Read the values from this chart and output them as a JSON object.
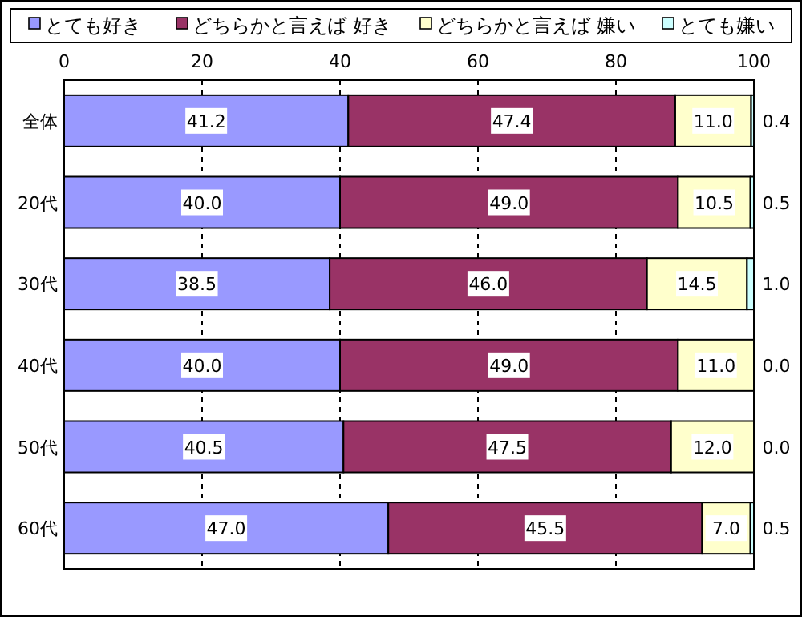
{
  "chart_data": {
    "type": "bar",
    "orientation": "horizontal",
    "stacked": true,
    "categories": [
      "全体",
      "20代",
      "30代",
      "40代",
      "50代",
      "60代"
    ],
    "series": [
      {
        "name": "とても好き",
        "color": "#9999ff",
        "values": [
          41.2,
          40.0,
          38.5,
          40.0,
          40.5,
          47.0
        ],
        "value_labels": [
          "41.2",
          "40.0",
          "38.5",
          "40.0",
          "40.5",
          "47.0"
        ]
      },
      {
        "name": "どちらかと言えば 好き",
        "color": "#993366",
        "values": [
          47.4,
          49.0,
          46.0,
          49.0,
          47.5,
          45.5
        ],
        "value_labels": [
          "47.4",
          "49.0",
          "46.0",
          "49.0",
          "47.5",
          "45.5"
        ]
      },
      {
        "name": "どちらかと言えば 嫌い",
        "color": "#ffffcc",
        "values": [
          11.0,
          10.5,
          14.5,
          11.0,
          12.0,
          7.0
        ],
        "value_labels": [
          "11.0",
          "10.5",
          "14.5",
          "11.0",
          "12.0",
          "7.0"
        ]
      },
      {
        "name": "とても嫌い",
        "color": "#ccffff",
        "values": [
          0.4,
          0.5,
          1.0,
          0.0,
          0.0,
          0.5
        ],
        "value_labels": [
          "0.4",
          "0.5",
          "1.0",
          "0.0",
          "0.0",
          "0.5"
        ]
      }
    ],
    "xlim": [
      0,
      100
    ],
    "xticks": [
      0,
      20,
      40,
      60,
      80,
      100
    ],
    "grid": "x",
    "legend": "top"
  }
}
